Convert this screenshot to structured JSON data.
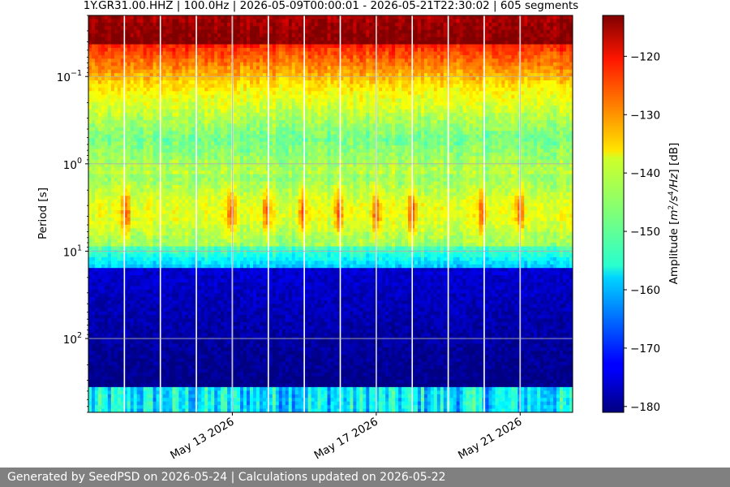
{
  "chart_data": {
    "type": "heatmap",
    "title": "1Y.GR31.00.HHZ | 100.0Hz | 2026-05-09T00:00:01 - 2026-05-21T22:30:02 | 605 segments",
    "ylabel": "Period [s]",
    "y_scale": "log",
    "y_inverted": true,
    "ylim": [
      0.02,
      700
    ],
    "y_ticks": [
      {
        "value": 0.1,
        "base": "10",
        "exp": "−1"
      },
      {
        "value": 1,
        "base": "10",
        "exp": "0"
      },
      {
        "value": 10,
        "base": "10",
        "exp": "1"
      },
      {
        "value": 100,
        "base": "10",
        "exp": "2"
      }
    ],
    "x_range": [
      "2026-05-09",
      "2026-05-22T11:00"
    ],
    "x_ticks": [
      {
        "date": "2026-05-13",
        "label": "May 13 2026"
      },
      {
        "date": "2026-05-17",
        "label": "May 17 2026"
      },
      {
        "date": "2026-05-21",
        "label": "May 21 2026"
      }
    ],
    "grid": true,
    "colorbar": {
      "label": "Amplitude [m²/s⁴/Hz] [dB]",
      "label_parts": {
        "pre": "Amplitude [",
        "u1": "m",
        "s1": "2",
        "u2": "/s",
        "s2": "4",
        "u3": "/Hz",
        "post": "] [dB]"
      },
      "min": -181,
      "max": -113,
      "ticks": [
        -120,
        -130,
        -140,
        -150,
        -160,
        -170,
        -180
      ],
      "colormap": "jet"
    },
    "gaps": [
      "2026-05-10T00:00",
      "2026-05-11T00:00",
      "2026-05-12T00:00",
      "2026-05-13T00:00",
      "2026-05-14T00:00",
      "2026-05-15T00:00",
      "2026-05-16T00:00",
      "2026-05-17T00:00",
      "2026-05-18T00:00",
      "2026-05-19T00:00",
      "2026-05-20T00:00",
      "2026-05-21T00:00"
    ],
    "microseism_peaks": [
      "2026-05-10T01:00",
      "2026-05-12T23:00",
      "2026-05-13T23:00",
      "2026-05-14T23:00",
      "2026-05-15T23:00",
      "2026-05-17T00:00",
      "2026-05-18T00:00",
      "2026-05-19T23:00",
      "2026-05-21T00:00"
    ]
  },
  "footer": {
    "text": "Generated by SeedPSD on 2026-05-24 | Calculations updated on 2026-05-22"
  }
}
